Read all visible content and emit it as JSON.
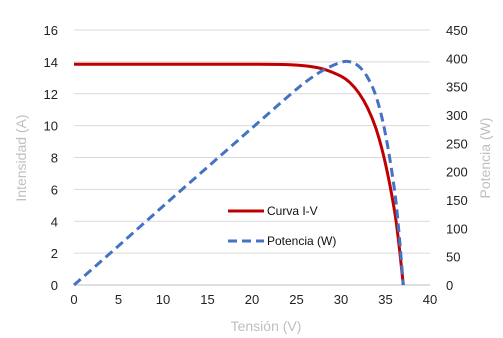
{
  "chart_data": {
    "type": "line",
    "title": "",
    "xlabel": "Tensión (V)",
    "ylabel": "Intensidad (A)",
    "y2label": "Potencia (W)",
    "xlim": [
      0,
      40
    ],
    "ylim": [
      0,
      16
    ],
    "y2lim": [
      0,
      450
    ],
    "x_ticks": [
      "0",
      "5",
      "10",
      "15",
      "20",
      "25",
      "30",
      "35",
      "40"
    ],
    "y_ticks": [
      "0",
      "2",
      "4",
      "6",
      "8",
      "10",
      "12",
      "14",
      "16"
    ],
    "y2_ticks": [
      "0",
      "50",
      "100",
      "150",
      "200",
      "250",
      "300",
      "350",
      "400",
      "450"
    ],
    "grid": "horizontal",
    "legend_position": "center-right",
    "series": [
      {
        "name": "Curva I-V",
        "axis": "left",
        "color": "#c00000",
        "style": "solid",
        "x": [
          0,
          5,
          10,
          15,
          20,
          24,
          26,
          28,
          30,
          31,
          32,
          33,
          34,
          35,
          36,
          36.5,
          37
        ],
        "y": [
          13.85,
          13.85,
          13.85,
          13.85,
          13.85,
          13.83,
          13.75,
          13.55,
          13.1,
          12.7,
          12.05,
          11.1,
          9.7,
          7.6,
          4.7,
          2.6,
          0
        ]
      },
      {
        "name": "Potencia (W)",
        "axis": "right",
        "color": "#4472c4",
        "style": "dashed",
        "x": [
          0,
          5,
          10,
          15,
          20,
          24,
          26,
          28,
          30,
          31,
          32,
          33,
          34,
          35,
          36,
          36.5,
          37
        ],
        "y": [
          0,
          69,
          139,
          208,
          277,
          332,
          358,
          379,
          393,
          394,
          386,
          366,
          330,
          266,
          169,
          95,
          0
        ]
      }
    ]
  }
}
